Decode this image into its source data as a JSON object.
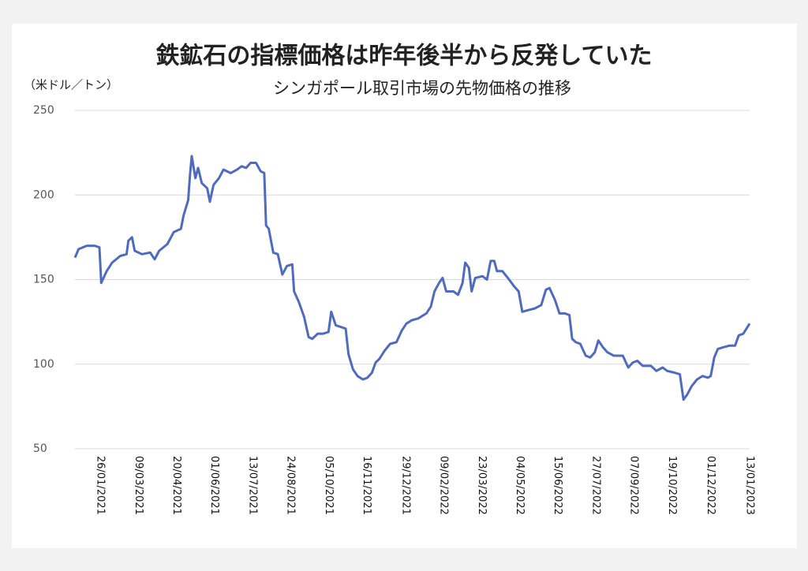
{
  "chart_data": {
    "type": "line",
    "title": "鉄鉱石の指標価格は昨年後半から反発していた",
    "subtitle": "シンガポール取引市場の先物価格の推移",
    "y_label": "（米ドル／トン）",
    "x": [
      "29/12/2020",
      "02/01/2021",
      "11/01/2021",
      "20/01/2021",
      "25/01/2021",
      "27/01/2021",
      "02/02/2021",
      "08/02/2021",
      "17/02/2021",
      "24/02/2021",
      "26/02/2021",
      "02/03/2021",
      "05/03/2021",
      "13/03/2021",
      "22/03/2021",
      "27/03/2021",
      "01/04/2021",
      "10/04/2021",
      "17/04/2021",
      "25/04/2021",
      "28/04/2021",
      "03/05/2021",
      "05/05/2021",
      "07/05/2021",
      "11/05/2021",
      "14/05/2021",
      "18/05/2021",
      "24/05/2021",
      "27/05/2021",
      "31/05/2021",
      "06/06/2021",
      "11/06/2021",
      "19/06/2021",
      "26/06/2021",
      "01/07/2021",
      "06/07/2021",
      "11/07/2021",
      "17/07/2021",
      "22/07/2021",
      "26/07/2021",
      "28/07/2021",
      "31/07/2021",
      "05/08/2021",
      "10/08/2021",
      "15/08/2021",
      "20/08/2021",
      "26/08/2021",
      "28/08/2021",
      "02/09/2021",
      "08/09/2021",
      "13/09/2021",
      "17/09/2021",
      "23/09/2021",
      "29/09/2021",
      "05/10/2021",
      "08/10/2021",
      "13/10/2021",
      "24/10/2021",
      "27/10/2021",
      "01/11/2021",
      "06/11/2021",
      "12/11/2021",
      "17/11/2021",
      "22/11/2021",
      "26/11/2021",
      "30/11/2021",
      "06/12/2021",
      "12/12/2021",
      "19/12/2021",
      "25/12/2021",
      "30/12/2021",
      "05/01/2022",
      "12/01/2022",
      "21/01/2022",
      "26/01/2022",
      "30/01/2022",
      "04/02/2022",
      "08/02/2022",
      "12/02/2022",
      "20/02/2022",
      "25/02/2022",
      "02/03/2022",
      "05/03/2022",
      "09/03/2022",
      "12/03/2022",
      "16/03/2022",
      "24/03/2022",
      "29/03/2022",
      "02/04/2022",
      "06/04/2022",
      "09/04/2022",
      "15/04/2022",
      "21/04/2022",
      "28/04/2022",
      "03/05/2022",
      "07/05/2022",
      "14/05/2022",
      "21/05/2022",
      "28/05/2022",
      "02/06/2022",
      "06/06/2022",
      "12/06/2022",
      "17/06/2022",
      "23/06/2022",
      "28/06/2022",
      "01/07/2022",
      "05/07/2022",
      "10/07/2022",
      "16/07/2022",
      "21/07/2022",
      "26/07/2022",
      "30/07/2022",
      "04/08/2022",
      "09/08/2022",
      "16/08/2022",
      "26/08/2022",
      "01/09/2022",
      "06/09/2022",
      "11/09/2022",
      "17/09/2022",
      "26/09/2022",
      "02/10/2022",
      "09/10/2022",
      "14/10/2022",
      "22/10/2022",
      "28/10/2022",
      "01/11/2022",
      "05/11/2022",
      "10/11/2022",
      "16/11/2022",
      "22/11/2022",
      "28/11/2022",
      "01/12/2022",
      "05/12/2022",
      "09/12/2022",
      "15/12/2022",
      "22/12/2022",
      "28/12/2022",
      "01/01/2023",
      "06/01/2023",
      "13/01/2023"
    ],
    "series": [
      {
        "color": "#4f6bbf",
        "values": [
          163,
          168,
          170,
          170,
          169,
          148,
          155,
          160,
          164,
          165,
          173,
          175,
          167,
          165,
          166,
          162,
          167,
          171,
          178,
          180,
          188,
          197,
          212,
          223,
          210,
          216,
          207,
          204,
          196,
          206,
          210,
          215,
          213,
          215,
          217,
          216,
          219,
          219,
          214,
          213,
          182,
          180,
          166,
          165,
          153,
          158,
          159,
          143,
          137,
          128,
          116,
          115,
          118,
          118,
          119,
          131,
          123,
          121,
          106,
          97,
          93,
          91,
          92,
          95,
          101,
          103,
          108,
          112,
          113,
          120,
          124,
          126,
          127,
          130,
          134,
          143,
          148,
          151,
          143,
          143,
          141,
          148,
          160,
          157,
          143,
          151,
          152,
          150,
          161,
          161,
          155,
          155,
          151,
          146,
          143,
          131,
          132,
          133,
          135,
          144,
          145,
          138,
          130,
          130,
          129,
          115,
          113,
          112,
          105,
          104,
          107,
          114,
          110,
          107,
          105,
          105,
          98,
          101,
          102,
          99,
          99,
          96,
          98,
          96,
          95,
          94,
          79,
          82,
          87,
          91,
          93,
          92,
          93,
          104,
          109,
          110,
          111,
          111,
          117,
          118,
          124
        ]
      }
    ],
    "xlim": [
      "29/12/2020",
      "13/01/2023"
    ],
    "xticks": [
      "26/01/2021",
      "09/03/2021",
      "20/04/2021",
      "01/06/2021",
      "13/07/2021",
      "24/08/2021",
      "05/10/2021",
      "16/11/2021",
      "29/12/2021",
      "09/02/2022",
      "23/03/2022",
      "04/05/2022",
      "15/06/2022",
      "27/07/2022",
      "07/09/2022",
      "19/10/2022",
      "01/12/2022",
      "13/01/2023"
    ],
    "ylim": [
      50,
      250
    ],
    "yticks": [
      50,
      100,
      150,
      200,
      250
    ],
    "grid": true
  }
}
